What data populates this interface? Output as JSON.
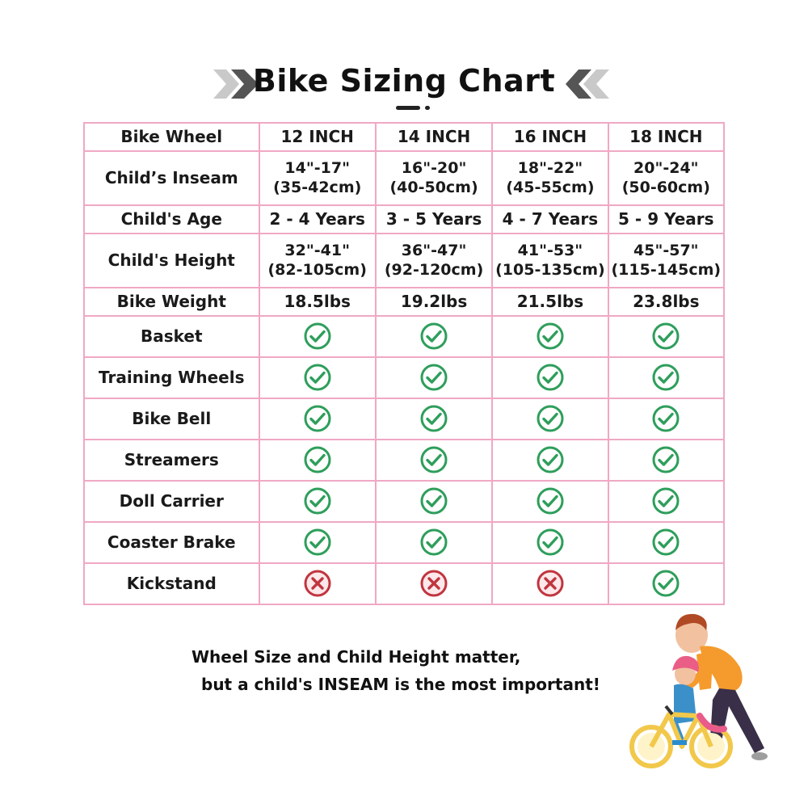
{
  "title": "Bike Sizing Chart",
  "colors": {
    "table_border": "#f0a8c4",
    "check_green": "#2e9e5b",
    "cross_red": "#c0353f",
    "chevron_gray": "#bdbdbd",
    "chevron_dark": "#555555"
  },
  "table": {
    "rows": [
      {
        "label": "Bike Wheel",
        "cells": [
          "12 INCH",
          "14 INCH",
          "16 INCH",
          "18 INCH"
        ]
      },
      {
        "label": "Child’s Inseam",
        "cells": [
          [
            "14\"-17\"",
            "(35-42cm)"
          ],
          [
            "16\"-20\"",
            "(40-50cm)"
          ],
          [
            "18\"-22\"",
            "(45-55cm)"
          ],
          [
            "20\"-24\"",
            "(50-60cm)"
          ]
        ]
      },
      {
        "label": "Child's Age",
        "cells": [
          "2 - 4 Years",
          "3 - 5 Years",
          "4 - 7 Years",
          "5 - 9 Years"
        ]
      },
      {
        "label": "Child's Height",
        "cells": [
          [
            "32\"-41\"",
            "(82-105cm)"
          ],
          [
            "36\"-47\"",
            "(92-120cm)"
          ],
          [
            "41\"-53\"",
            "(105-135cm)"
          ],
          [
            "45\"-57\"",
            "(115-145cm)"
          ]
        ]
      },
      {
        "label": "Bike Weight",
        "cells": [
          "18.5lbs",
          "19.2lbs",
          "21.5lbs",
          "23.8lbs"
        ]
      },
      {
        "label": "Basket",
        "icons": [
          "check-icon",
          "check-icon",
          "check-icon",
          "check-icon"
        ]
      },
      {
        "label": "Training Wheels",
        "icons": [
          "check-icon",
          "check-icon",
          "check-icon",
          "check-icon"
        ]
      },
      {
        "label": "Bike Bell",
        "icons": [
          "check-icon",
          "check-icon",
          "check-icon",
          "check-icon"
        ]
      },
      {
        "label": "Streamers",
        "icons": [
          "check-icon",
          "check-icon",
          "check-icon",
          "check-icon"
        ]
      },
      {
        "label": "Doll Carrier",
        "icons": [
          "check-icon",
          "check-icon",
          "check-icon",
          "check-icon"
        ]
      },
      {
        "label": "Coaster Brake",
        "icons": [
          "check-icon",
          "check-icon",
          "check-icon",
          "check-icon"
        ]
      },
      {
        "label": "Kickstand",
        "icons": [
          "cross-icon",
          "cross-icon",
          "cross-icon",
          "check-icon"
        ]
      }
    ]
  },
  "note": {
    "line1": "Wheel Size and Child Height matter,",
    "line2": "but a child's INSEAM is the most important!"
  }
}
